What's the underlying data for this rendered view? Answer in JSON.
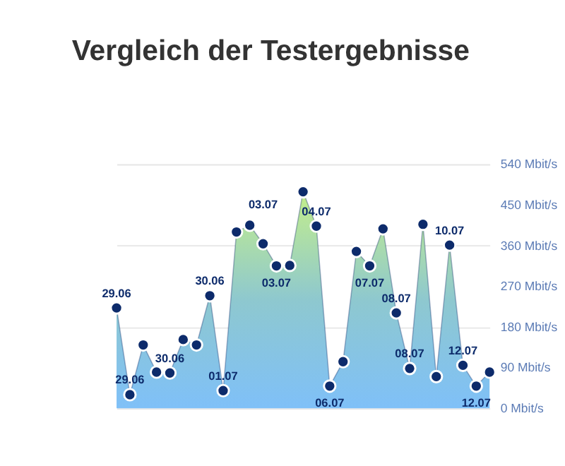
{
  "chart_data": {
    "type": "area",
    "title": "Vergleich der Testergebnisse",
    "categories": [
      "29.06",
      "29.06",
      null,
      null,
      "30.06",
      null,
      null,
      "30.06",
      "01.07",
      null,
      null,
      "03.07",
      "03.07",
      null,
      null,
      "04.07",
      "06.07",
      null,
      null,
      "07.07",
      null,
      "08.07",
      "08.07",
      null,
      null,
      "10.07",
      "12.07",
      "12.07",
      null
    ],
    "series": [
      {
        "color": "#0d2b6b",
        "values": [
          222,
          30,
          140,
          80,
          78,
          152,
          140,
          249,
          39,
          390,
          405,
          364,
          315,
          316,
          479,
          403,
          49,
          103,
          347,
          315,
          397,
          211,
          88,
          407,
          70,
          361,
          95,
          49,
          80
        ]
      }
    ],
    "ylim": [
      0,
      540
    ],
    "yticks": [
      {
        "value": 0,
        "label": "0 Mbit/s"
      },
      {
        "value": 90,
        "label": "90 Mbit/s"
      },
      {
        "value": 180,
        "label": "180 Mbit/s"
      },
      {
        "value": 270,
        "label": "270 Mbit/s"
      },
      {
        "value": 360,
        "label": "360 Mbit/s"
      },
      {
        "value": 450,
        "label": "450 Mbit/s"
      },
      {
        "value": 540,
        "label": "540 Mbit/s"
      }
    ],
    "grid": "y",
    "marker": "circle",
    "tick_labels": "y"
  }
}
